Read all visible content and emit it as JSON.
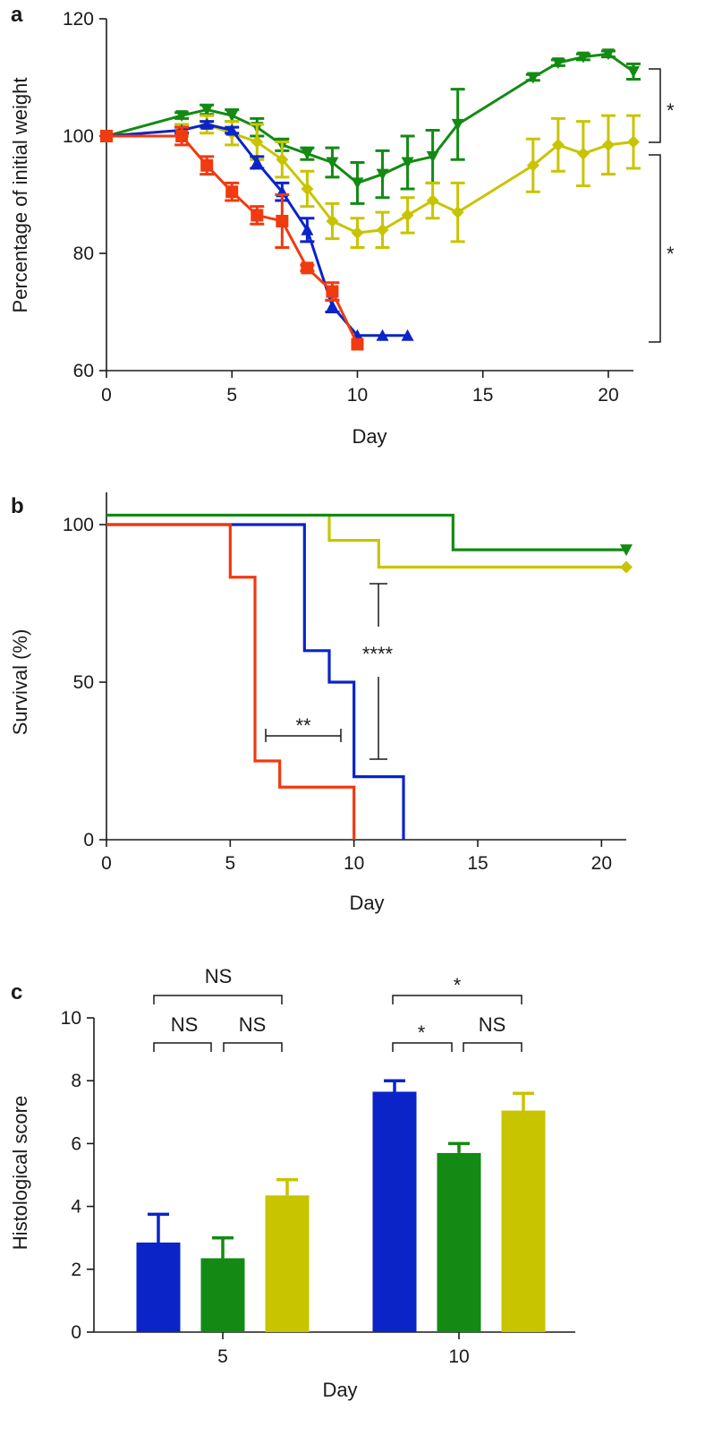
{
  "colors": {
    "blue": "#0a24c8",
    "green": "#138a13",
    "yellow": "#c9c400",
    "red": "#f03a10",
    "axis": "#1a1a1a"
  },
  "chart_data": [
    {
      "panel": "a",
      "type": "line",
      "xlabel": "Day",
      "ylabel": "Percentage of initial weight",
      "xlim": [
        0,
        21
      ],
      "ylim": [
        60,
        120
      ],
      "xticks": [
        "0",
        "5",
        "10",
        "15",
        "20"
      ],
      "yticks": [
        "60",
        "80",
        "100",
        "120"
      ],
      "grid": false,
      "series": [
        {
          "color": "#138a13",
          "marker": "triangle-down",
          "x": [
            0,
            3,
            4,
            5,
            6,
            7,
            8,
            9,
            10,
            11,
            12,
            13,
            14,
            17,
            18,
            19,
            20,
            21
          ],
          "y": [
            100,
            103.5,
            104.5,
            103.5,
            101.5,
            98.5,
            97,
            95.5,
            92,
            93.5,
            95.5,
            96.5,
            102,
            110,
            112.5,
            113.5,
            114,
            111
          ],
          "err": [
            0,
            0.5,
            0.8,
            1,
            1.5,
            1,
            1,
            2.5,
            3.5,
            4,
            4.5,
            4.5,
            6,
            0.5,
            0.5,
            0.5,
            0.5,
            1.3
          ]
        },
        {
          "color": "#c9c400",
          "marker": "diamond",
          "x": [
            0,
            3,
            4,
            5,
            6,
            7,
            8,
            9,
            10,
            11,
            12,
            13,
            14,
            17,
            18,
            19,
            20,
            21
          ],
          "y": [
            100,
            101,
            102,
            100.5,
            99,
            96,
            91,
            85.5,
            83.5,
            84,
            86.5,
            89,
            87,
            95,
            98.5,
            97,
            98.5,
            99
          ],
          "err": [
            0,
            1,
            1.5,
            2,
            3,
            3,
            3,
            3,
            2.5,
            3,
            3,
            3,
            5,
            4.5,
            4.5,
            5.5,
            5,
            4.5
          ]
        },
        {
          "color": "#0a24c8",
          "marker": "triangle-up",
          "x": [
            0,
            3,
            4,
            5,
            6,
            7,
            8,
            9,
            10,
            11,
            12
          ],
          "y": [
            100,
            101,
            102,
            101,
            95.5,
            90.5,
            84,
            71,
            66,
            66,
            66
          ],
          "err": [
            0,
            0.5,
            0.5,
            0.5,
            1,
            1.5,
            2,
            1,
            0,
            0,
            0
          ]
        },
        {
          "color": "#f03a10",
          "marker": "square",
          "x": [
            0,
            3,
            4,
            5,
            6,
            7,
            8,
            9,
            10
          ],
          "y": [
            100,
            100,
            95,
            90.5,
            86.5,
            85.5,
            77.5,
            73.5,
            64.5
          ],
          "err": [
            0,
            1.5,
            1.5,
            1.5,
            1.5,
            4.5,
            0.5,
            1.5,
            0
          ]
        }
      ],
      "annotations": [
        "*",
        "*"
      ]
    },
    {
      "panel": "b",
      "type": "line",
      "step": true,
      "xlabel": "Day",
      "ylabel": "Survival (%)",
      "xlim": [
        0,
        21
      ],
      "ylim": [
        0,
        100
      ],
      "xticks": [
        "0",
        "5",
        "10",
        "15",
        "20"
      ],
      "yticks": [
        "0",
        "50",
        "100"
      ],
      "grid": false,
      "series": [
        {
          "color": "#c9c400",
          "marker": "diamond",
          "x": [
            0,
            9,
            11,
            21
          ],
          "y": [
            100,
            95,
            86.5,
            86.5
          ],
          "start_y_offset": 3
        },
        {
          "color": "#138a13",
          "marker": "triangle-down",
          "x": [
            0,
            14,
            21
          ],
          "y": [
            100,
            92,
            92
          ],
          "start_y_offset": 3
        },
        {
          "color": "#0a24c8",
          "x": [
            0,
            8,
            9,
            10,
            12
          ],
          "y": [
            100,
            60,
            50,
            20,
            0
          ]
        },
        {
          "color": "#f03a10",
          "x": [
            0,
            5,
            6,
            7,
            10
          ],
          "y": [
            100,
            83.3,
            25,
            16.7,
            0
          ]
        }
      ],
      "annotations": [
        "**",
        "****"
      ]
    },
    {
      "panel": "c",
      "type": "bar",
      "xlabel": "Day",
      "ylabel": "Histological score",
      "categories": [
        "5",
        "10"
      ],
      "ylim": [
        0,
        10
      ],
      "yticks": [
        "0",
        "2",
        "4",
        "6",
        "8",
        "10"
      ],
      "grid": false,
      "series": [
        {
          "color": "#0a24c8",
          "values": [
            2.85,
            7.65
          ],
          "err": [
            0.9,
            0.35
          ]
        },
        {
          "color": "#138a13",
          "values": [
            2.35,
            5.7
          ],
          "err": [
            0.65,
            0.3
          ]
        },
        {
          "color": "#c9c400",
          "values": [
            4.35,
            7.05
          ],
          "err": [
            0.5,
            0.55
          ]
        }
      ],
      "annotations": {
        "day5": [
          "NS",
          "NS",
          "NS"
        ],
        "day10": [
          "*",
          "*",
          "NS"
        ]
      }
    }
  ]
}
